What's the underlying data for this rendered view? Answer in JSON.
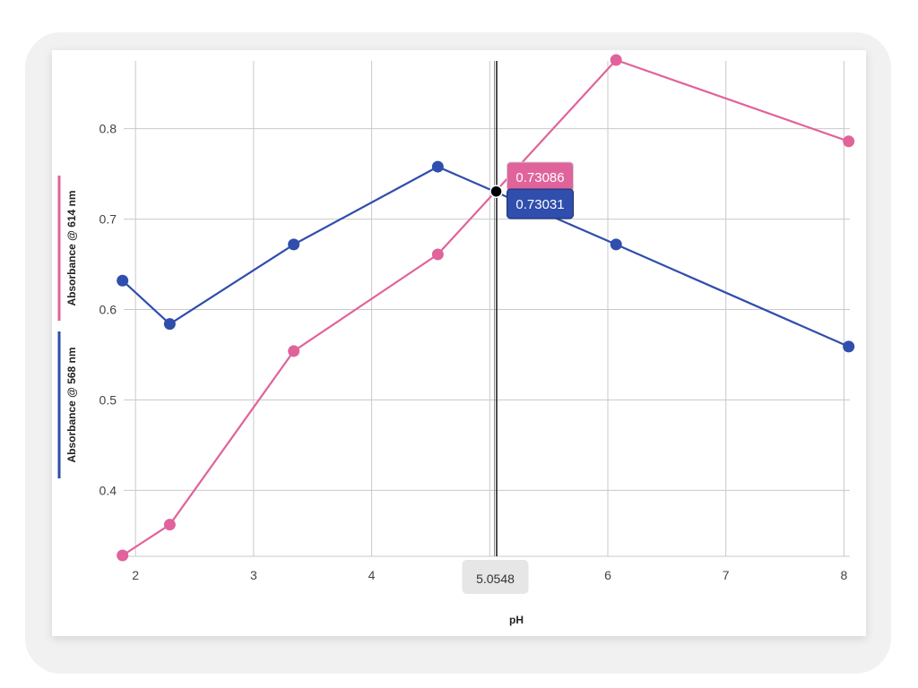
{
  "chart_data": {
    "type": "line",
    "xlabel": "pH",
    "ylabel": "",
    "xlim": [
      1.9,
      8.05
    ],
    "ylim": [
      0.327,
      0.875
    ],
    "x_ticks": [
      2,
      3,
      4,
      5,
      6,
      7,
      8
    ],
    "y_ticks": [
      0.4,
      0.5,
      0.6,
      0.7,
      0.8
    ],
    "grid": true,
    "legend": "left-vertical",
    "series": [
      {
        "name": "Absorbance @ 614 nm",
        "color": "#e0639b",
        "x": [
          1.89,
          2.29,
          3.34,
          4.56,
          6.07,
          8.04
        ],
        "y": [
          0.328,
          0.362,
          0.554,
          0.661,
          0.876,
          0.786
        ]
      },
      {
        "name": "Absorbance @ 568 nm",
        "color": "#2f4ead",
        "x": [
          1.89,
          2.29,
          3.34,
          4.56,
          6.07,
          8.04
        ],
        "y": [
          0.632,
          0.584,
          0.672,
          0.758,
          0.672,
          0.559
        ]
      }
    ],
    "crosshair": {
      "x_label": "5.0548",
      "x_value": 5.0548,
      "intersection_y": 0.7306,
      "tooltips": [
        {
          "series": 0,
          "text": "0.73086",
          "color": "#e0639b"
        },
        {
          "series": 1,
          "text": "0.73031",
          "color": "#2f4ead"
        }
      ]
    }
  }
}
